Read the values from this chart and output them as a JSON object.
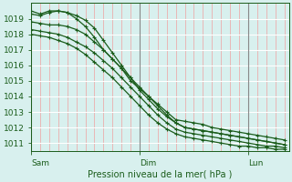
{
  "title": "Pression niveau de la mer( hPa )",
  "bg_color": "#d8f0ee",
  "plot_bg_color": "#d8f0ee",
  "line_color": "#1a5c1a",
  "grid_color_h": "#ffffff",
  "grid_color_v": "#f0a0a0",
  "grid_color_day": "#888888",
  "tick_label_color": "#1a5c1a",
  "ylim": [
    1010.5,
    1020.0
  ],
  "yticks": [
    1011,
    1012,
    1013,
    1014,
    1015,
    1016,
    1017,
    1018,
    1019
  ],
  "day_labels": [
    "Sam",
    "Dim",
    "Lun"
  ],
  "day_positions": [
    0,
    48,
    96
  ],
  "xlim": [
    0,
    114
  ],
  "series": [
    {
      "x": [
        0,
        4,
        8,
        12,
        16,
        20,
        24,
        28,
        32,
        36,
        40,
        44,
        48,
        52,
        56,
        60,
        64,
        68,
        72,
        76,
        80,
        84,
        88,
        92,
        96,
        100,
        104,
        108,
        112
      ],
      "y": [
        1019.5,
        1019.3,
        1019.5,
        1019.5,
        1019.4,
        1019.0,
        1018.5,
        1017.8,
        1017.0,
        1016.4,
        1015.8,
        1015.0,
        1014.5,
        1014.0,
        1013.5,
        1013.0,
        1012.5,
        1012.4,
        1012.3,
        1012.2,
        1012.0,
        1011.9,
        1011.8,
        1011.7,
        1011.6,
        1011.5,
        1011.4,
        1011.3,
        1011.2
      ]
    },
    {
      "x": [
        0,
        4,
        8,
        12,
        16,
        20,
        24,
        28,
        32,
        36,
        40,
        44,
        48,
        52,
        56,
        60,
        64,
        68,
        72,
        76,
        80,
        84,
        88,
        92,
        96,
        100,
        104,
        108,
        112
      ],
      "y": [
        1019.3,
        1019.2,
        1019.4,
        1019.5,
        1019.4,
        1019.2,
        1018.9,
        1018.4,
        1017.6,
        1016.8,
        1016.0,
        1015.2,
        1014.4,
        1013.8,
        1013.2,
        1012.7,
        1012.3,
        1012.0,
        1011.9,
        1011.8,
        1011.7,
        1011.6,
        1011.5,
        1011.4,
        1011.3,
        1011.2,
        1011.1,
        1011.0,
        1010.9
      ]
    },
    {
      "x": [
        0,
        4,
        8,
        12,
        16,
        20,
        24,
        28,
        32,
        36,
        40,
        44,
        48,
        52,
        56,
        60,
        64,
        68,
        72,
        76,
        80,
        84,
        88,
        92,
        96,
        100,
        104,
        108,
        112
      ],
      "y": [
        1018.8,
        1018.7,
        1018.6,
        1018.6,
        1018.5,
        1018.3,
        1018.0,
        1017.5,
        1017.0,
        1016.4,
        1015.8,
        1015.2,
        1014.6,
        1014.0,
        1013.4,
        1012.8,
        1012.3,
        1012.0,
        1011.9,
        1011.8,
        1011.7,
        1011.6,
        1011.5,
        1011.4,
        1011.3,
        1011.2,
        1011.1,
        1011.0,
        1010.9
      ]
    },
    {
      "x": [
        0,
        4,
        8,
        12,
        16,
        20,
        24,
        28,
        32,
        36,
        40,
        44,
        48,
        52,
        56,
        60,
        64,
        68,
        72,
        76,
        80,
        84,
        88,
        92,
        96,
        100,
        104,
        108,
        112
      ],
      "y": [
        1018.3,
        1018.2,
        1018.1,
        1018.0,
        1017.8,
        1017.5,
        1017.2,
        1016.8,
        1016.3,
        1015.8,
        1015.2,
        1014.6,
        1014.0,
        1013.4,
        1012.8,
        1012.3,
        1011.9,
        1011.7,
        1011.6,
        1011.5,
        1011.4,
        1011.3,
        1011.2,
        1011.1,
        1011.0,
        1010.9,
        1010.8,
        1010.8,
        1010.7
      ]
    },
    {
      "x": [
        0,
        4,
        8,
        12,
        16,
        20,
        24,
        28,
        32,
        36,
        40,
        44,
        48,
        52,
        56,
        60,
        64,
        68,
        72,
        76,
        80,
        84,
        88,
        92,
        96,
        100,
        104,
        108,
        112
      ],
      "y": [
        1018.0,
        1017.9,
        1017.8,
        1017.6,
        1017.4,
        1017.1,
        1016.7,
        1016.2,
        1015.7,
        1015.2,
        1014.6,
        1014.0,
        1013.4,
        1012.8,
        1012.3,
        1011.9,
        1011.6,
        1011.4,
        1011.3,
        1011.2,
        1011.1,
        1011.0,
        1010.9,
        1010.8,
        1010.8,
        1010.7,
        1010.7,
        1010.6,
        1010.6
      ]
    }
  ],
  "marker": "+",
  "marker_size": 3.5,
  "line_width": 0.9
}
